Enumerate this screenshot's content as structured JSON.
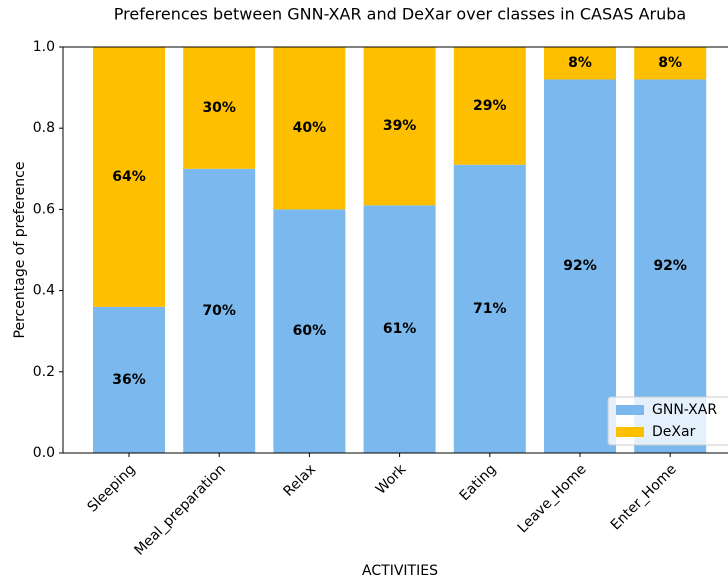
{
  "chart_data": {
    "type": "stacked_bar",
    "title": "Preferences between GNN-XAR and DeXar over classes in CASAS Aruba",
    "x_label": "ACTIVITIES",
    "y_label": "Percentage of preference",
    "categories": [
      "Sleeping",
      "Meal_preparation",
      "Relax",
      "Work",
      "Eating",
      "Leave_Home",
      "Enter_Home"
    ],
    "series": [
      {
        "name": "GNN-XAR",
        "color": "#7ab8ee",
        "values": [
          0.36,
          0.7,
          0.6,
          0.61,
          0.71,
          0.92,
          0.92
        ],
        "value_labels": [
          "36%",
          "70%",
          "60%",
          "61%",
          "71%",
          "92%",
          "92%"
        ]
      },
      {
        "name": "DeXar",
        "color": "#fdbf00",
        "values": [
          0.64,
          0.3,
          0.4,
          0.39,
          0.29,
          0.08,
          0.08
        ],
        "value_labels": [
          "64%",
          "30%",
          "40%",
          "39%",
          "29%",
          "8%",
          "8%"
        ]
      }
    ],
    "ylim": [
      0,
      1.0
    ],
    "yticks": [
      {
        "value": 0,
        "label": "0.0"
      },
      0.2,
      0.4,
      0.6,
      0.8,
      {
        "value": 1.0,
        "label": "1.0"
      }
    ],
    "legend": "lower right"
  }
}
